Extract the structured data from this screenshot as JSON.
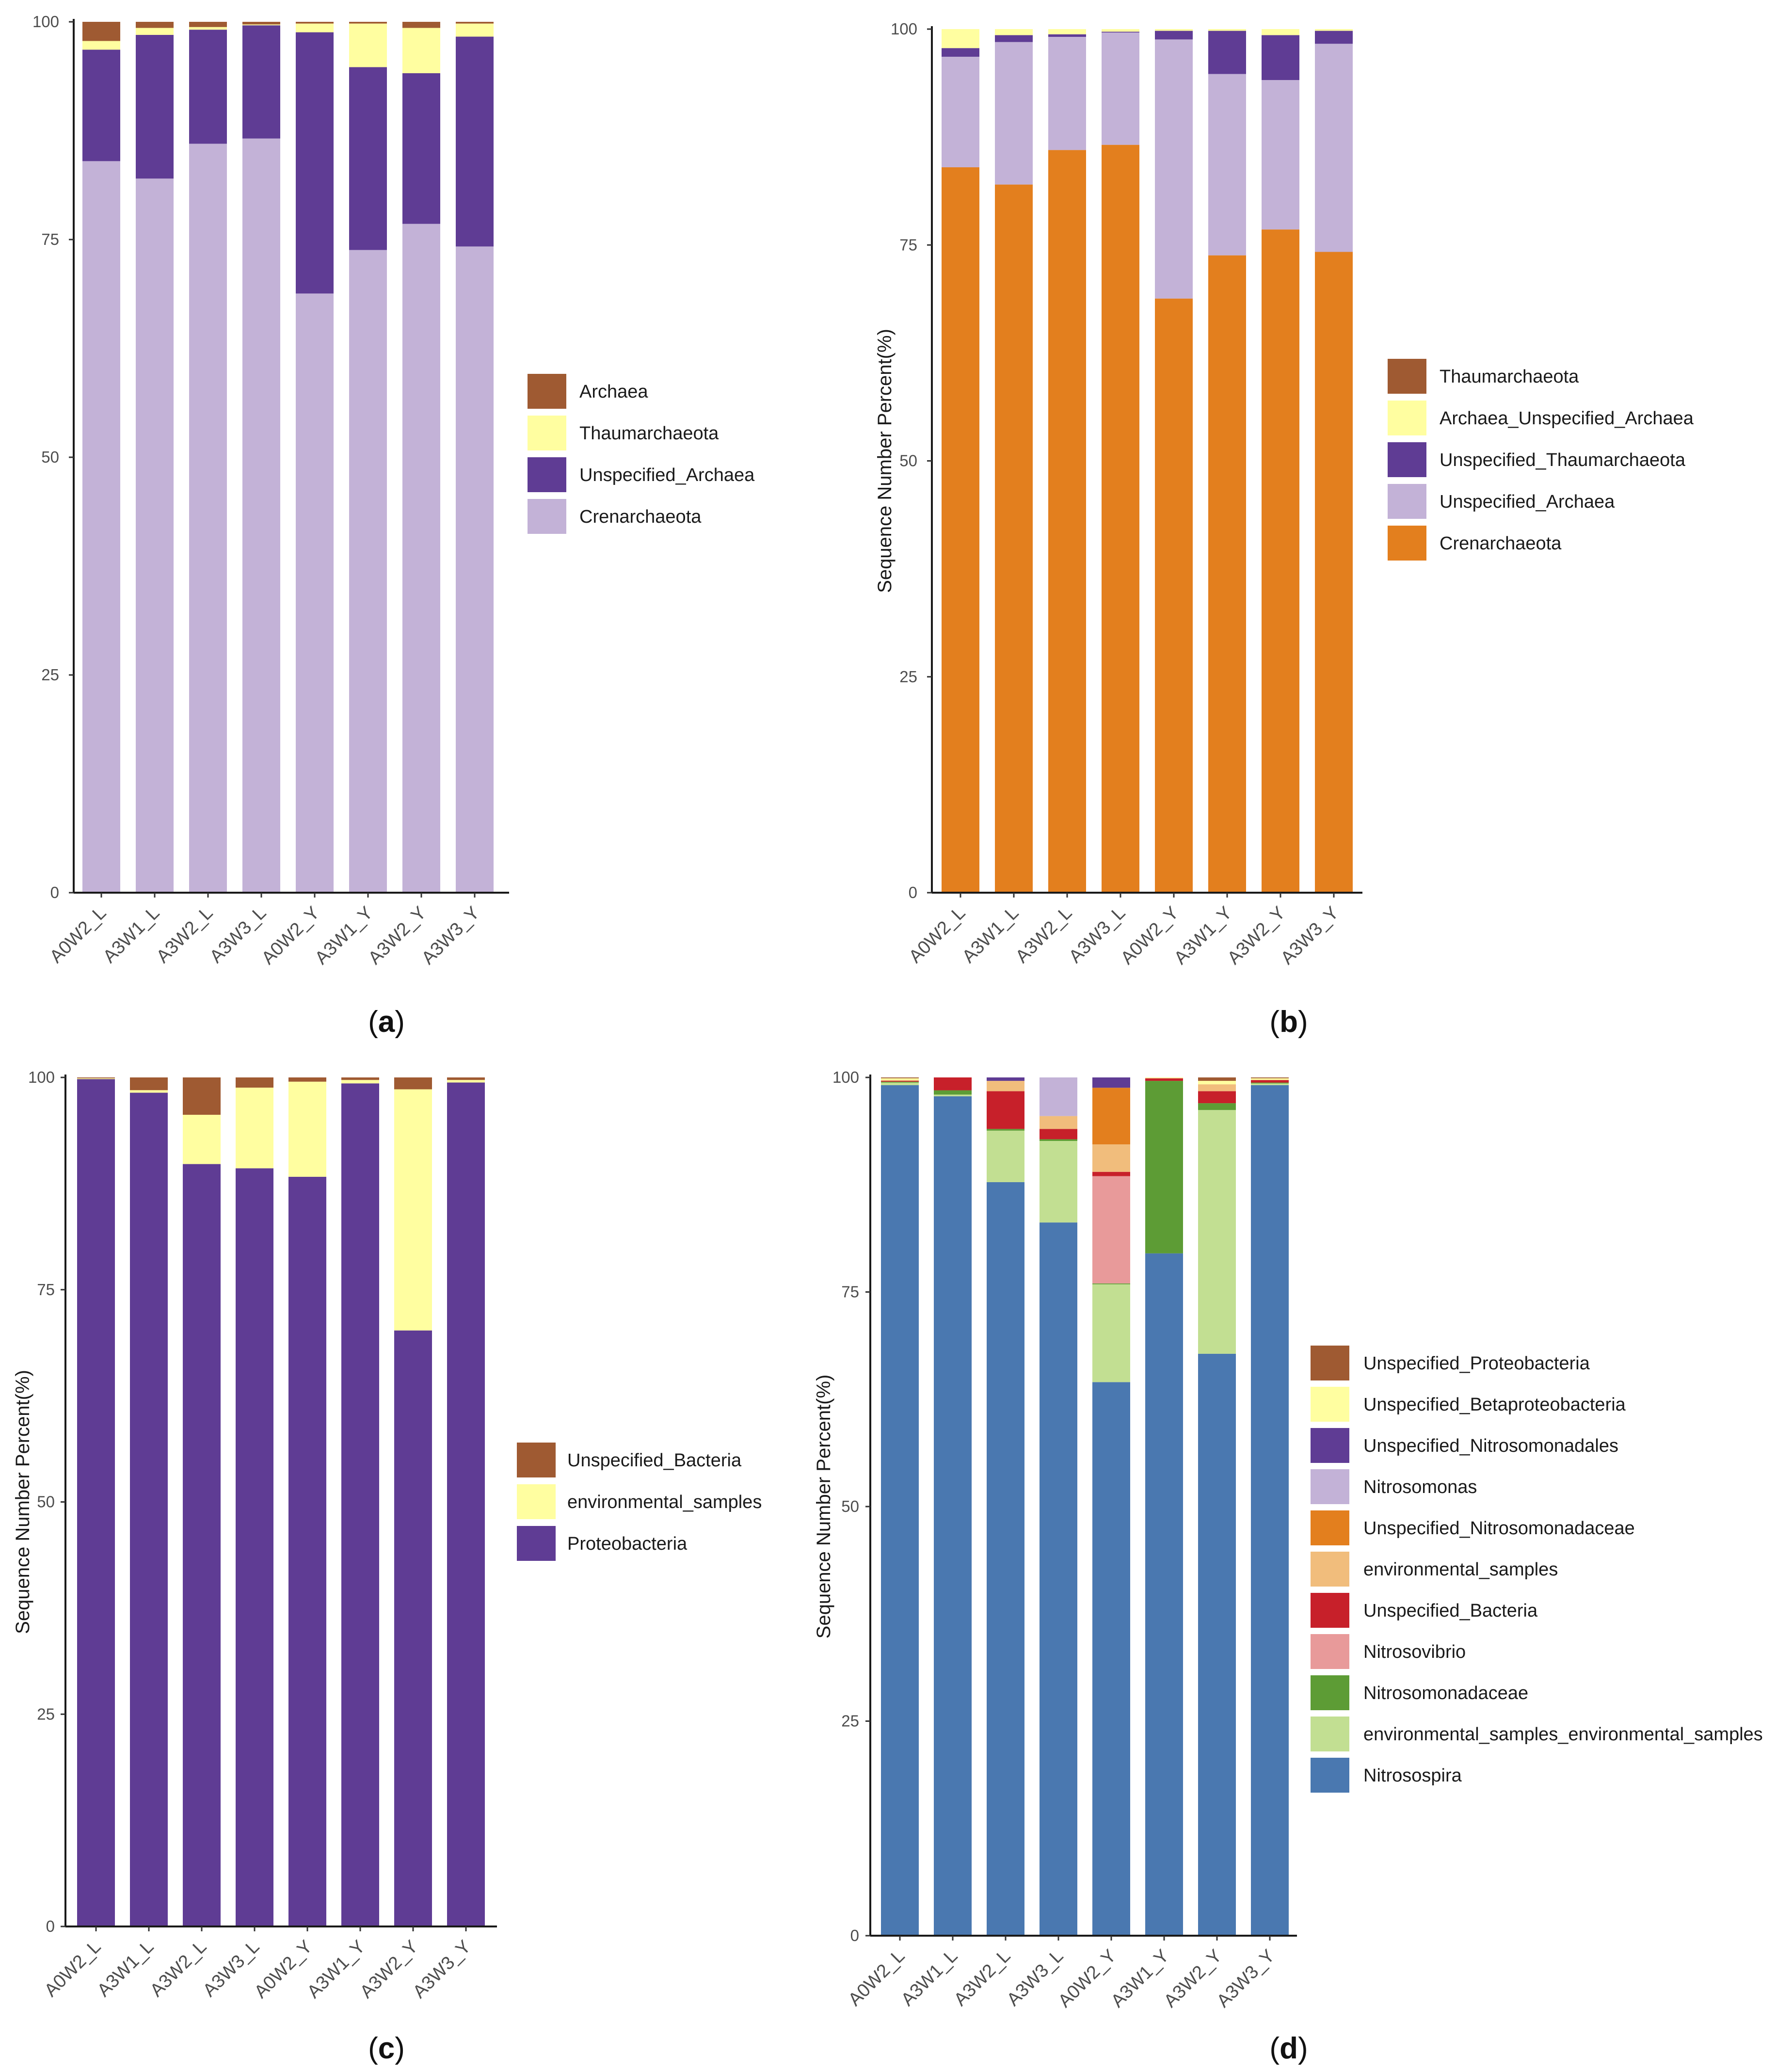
{
  "chart_data": [
    {
      "id": "a",
      "type": "bar",
      "stacked": true,
      "panel_label": "a",
      "ylabel": "",
      "ylim": [
        0,
        100
      ],
      "yticks": [
        "0",
        "25",
        "50",
        "75",
        "100"
      ],
      "categories": [
        "A0W2_L",
        "A3W1_L",
        "A3W2_L",
        "A3W3_L",
        "A0W2_Y",
        "A3W1_Y",
        "A3W2_Y",
        "A3W3_Y"
      ],
      "series": [
        {
          "name": "Crenarchaeota",
          "color": "#c3b2d7",
          "values": [
            84.0,
            82.0,
            86.0,
            86.6,
            68.8,
            73.8,
            76.8,
            74.2
          ]
        },
        {
          "name": "Unspecified_Archaea",
          "color": "#5f3c94",
          "values": [
            12.8,
            16.5,
            13.1,
            13.0,
            30.0,
            21.0,
            17.3,
            24.1
          ]
        },
        {
          "name": "Thaumarchaeota",
          "color": "#fffea0",
          "values": [
            1.0,
            0.8,
            0.3,
            0.1,
            1.0,
            5.0,
            5.2,
            1.5
          ]
        },
        {
          "name": "Archaea",
          "color": "#9f5a32",
          "values": [
            2.2,
            0.7,
            0.6,
            0.3,
            0.2,
            0.2,
            0.7,
            0.2
          ]
        }
      ],
      "legend_order": [
        "Archaea",
        "Thaumarchaeota",
        "Unspecified_Archaea",
        "Crenarchaeota"
      ]
    },
    {
      "id": "b",
      "type": "bar",
      "stacked": true,
      "panel_label": "b",
      "ylabel": "Sequence Number Percent(%)",
      "ylim": [
        0,
        100
      ],
      "yticks": [
        "0",
        "25",
        "50",
        "75",
        "100"
      ],
      "categories": [
        "A0W2_L",
        "A3W1_L",
        "A3W2_L",
        "A3W3_L",
        "A0W2_Y",
        "A3W1_Y",
        "A3W2_Y",
        "A3W3_Y"
      ],
      "series": [
        {
          "name": "Crenarchaeota",
          "color": "#e37f1e",
          "values": [
            84.0,
            82.0,
            86.0,
            86.6,
            68.8,
            73.8,
            76.8,
            74.2
          ]
        },
        {
          "name": "Unspecified_Archaea",
          "color": "#c3b2d7",
          "values": [
            12.8,
            16.5,
            13.1,
            13.0,
            30.0,
            21.0,
            17.3,
            24.1
          ]
        },
        {
          "name": "Unspecified_Thaumarchaeota",
          "color": "#5f3c94",
          "values": [
            1.0,
            0.8,
            0.3,
            0.1,
            1.0,
            5.0,
            5.2,
            1.5
          ]
        },
        {
          "name": "Archaea_Unspecified_Archaea",
          "color": "#fffea0",
          "values": [
            2.2,
            0.7,
            0.6,
            0.3,
            0.2,
            0.2,
            0.7,
            0.2
          ]
        },
        {
          "name": "Thaumarchaeota",
          "color": "#9f5a32",
          "values": [
            0,
            0,
            0,
            0,
            0,
            0,
            0,
            0
          ]
        }
      ],
      "legend_order": [
        "Thaumarchaeota",
        "Archaea_Unspecified_Archaea",
        "Unspecified_Thaumarchaeota",
        "Unspecified_Archaea",
        "Crenarchaeota"
      ]
    },
    {
      "id": "c",
      "type": "bar",
      "stacked": true,
      "panel_label": "c",
      "ylabel": "Sequence Number Percent(%)",
      "ylim": [
        0,
        100
      ],
      "yticks": [
        "0",
        "25",
        "50",
        "75",
        "100"
      ],
      "categories": [
        "A0W2_L",
        "A3W1_L",
        "A3W2_L",
        "A3W3_L",
        "A0W2_Y",
        "A3W1_Y",
        "A3W2_Y",
        "A3W3_Y"
      ],
      "series": [
        {
          "name": "Proteobacteria",
          "color": "#5f3c94",
          "values": [
            99.8,
            98.2,
            89.8,
            89.3,
            88.3,
            99.3,
            70.2,
            99.4
          ]
        },
        {
          "name": "environmental_samples",
          "color": "#fffea0",
          "values": [
            0.1,
            0.3,
            5.8,
            9.5,
            11.2,
            0.4,
            28.4,
            0.3
          ]
        },
        {
          "name": "Unspecified_Bacteria",
          "color": "#9f5a32",
          "values": [
            0.1,
            1.5,
            4.4,
            1.2,
            0.5,
            0.3,
            1.4,
            0.3
          ]
        }
      ],
      "legend_order": [
        "Unspecified_Bacteria",
        "environmental_samples",
        "Proteobacteria"
      ]
    },
    {
      "id": "d",
      "type": "bar",
      "stacked": true,
      "panel_label": "d",
      "ylabel": "Sequence Number Percent(%)",
      "ylim": [
        0,
        100
      ],
      "yticks": [
        "0",
        "25",
        "50",
        "75",
        "100"
      ],
      "categories": [
        "A0W2_L",
        "A3W1_L",
        "A3W2_L",
        "A3W3_L",
        "A0W2_Y",
        "A3W1_Y",
        "A3W2_Y",
        "A3W3_Y"
      ],
      "series": [
        {
          "name": "Nitrosospira",
          "color": "#4a78b0",
          "values": [
            99.1,
            97.8,
            87.8,
            83.1,
            64.5,
            79.5,
            67.8,
            99.1
          ]
        },
        {
          "name": "environmental_samples_environmental_samples",
          "color": "#c2df92",
          "values": [
            0.3,
            0.2,
            6.0,
            9.5,
            11.4,
            0,
            28.4,
            0.2
          ]
        },
        {
          "name": "Nitrosomonadaceae",
          "color": "#5d9c35",
          "values": [
            0.1,
            0.5,
            0.2,
            0.2,
            0.1,
            20.1,
            0.8,
            0.1
          ]
        },
        {
          "name": "Nitrosovibrio",
          "color": "#e89a9a",
          "values": [
            0,
            0,
            0,
            0,
            12.5,
            0,
            0,
            0
          ]
        },
        {
          "name": "Unspecified_Bacteria",
          "color": "#c7202a",
          "values": [
            0.1,
            1.5,
            4.4,
            1.2,
            0.5,
            0.3,
            1.4,
            0.3
          ]
        },
        {
          "name": "environmental_samples",
          "color": "#f1bd7c",
          "values": [
            0.1,
            0,
            1.2,
            1.5,
            3.2,
            0,
            0.8,
            0
          ]
        },
        {
          "name": "Unspecified_Nitrosomonadaceae",
          "color": "#e37f1e",
          "values": [
            0,
            0,
            0,
            0,
            6.6,
            0,
            0,
            0
          ]
        },
        {
          "name": "Nitrosomonas",
          "color": "#c3b2d7",
          "values": [
            0,
            0,
            0,
            4.5,
            0,
            0,
            0,
            0
          ]
        },
        {
          "name": "Unspecified_Nitrosomonadales",
          "color": "#5f3c94",
          "values": [
            0,
            0,
            0.4,
            0,
            1.2,
            0,
            0,
            0
          ]
        },
        {
          "name": "Unspecified_Betaproteobacteria",
          "color": "#fffea0",
          "values": [
            0.2,
            0,
            0,
            0,
            0,
            0.1,
            0.4,
            0.2
          ]
        },
        {
          "name": "Unspecified_Proteobacteria",
          "color": "#9f5a32",
          "values": [
            0.1,
            0,
            0,
            0,
            0,
            0,
            0.4,
            0.1
          ]
        }
      ],
      "legend_order": [
        "Unspecified_Proteobacteria",
        "Unspecified_Betaproteobacteria",
        "Unspecified_Nitrosomonadales",
        "Nitrosomonas",
        "Unspecified_Nitrosomonadaceae",
        "environmental_samples",
        "Unspecified_Bacteria",
        "Nitrosovibrio",
        "Nitrosomonadaceae",
        "environmental_samples_environmental_samples",
        "Nitrosospira"
      ]
    }
  ]
}
